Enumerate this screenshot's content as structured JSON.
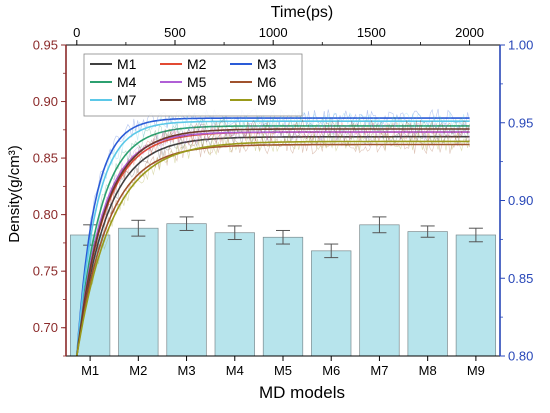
{
  "chart_data": {
    "type": "bar",
    "xlabel": "MD models",
    "ylabel_left": "Density(g/cm³)",
    "xlabel_top": "Time(ps)",
    "categories": [
      "M1",
      "M2",
      "M3",
      "M4",
      "M5",
      "M6",
      "M7",
      "M8",
      "M9"
    ],
    "bars": {
      "name": "Density",
      "values": [
        0.782,
        0.788,
        0.792,
        0.784,
        0.78,
        0.768,
        0.791,
        0.785,
        0.782
      ],
      "errors": [
        0.009,
        0.007,
        0.006,
        0.006,
        0.006,
        0.006,
        0.007,
        0.005,
        0.006
      ],
      "color": "#b7e4ec"
    },
    "left_axis": {
      "min": 0.675,
      "max": 0.95,
      "ticks": [
        0.7,
        0.75,
        0.8,
        0.85,
        0.9,
        0.95
      ],
      "tick_labels": [
        "0.70",
        "0.75",
        "0.80",
        "0.85",
        "0.90",
        "0.95"
      ],
      "color": "#8b2a2a"
    },
    "right_axis": {
      "min": 0.8,
      "max": 1.0,
      "ticks": [
        0.8,
        0.85,
        0.9,
        0.95,
        1.0
      ],
      "tick_labels": [
        "0.80",
        "0.85",
        "0.90",
        "0.95",
        "1.00"
      ],
      "color": "#2847b8"
    },
    "top_axis": {
      "min": -55,
      "max": 2155,
      "ticks": [
        0,
        500,
        1000,
        1500,
        2000
      ],
      "tick_labels": [
        "0",
        "500",
        "1000",
        "1500",
        "2000"
      ]
    },
    "lines": {
      "axis": "right",
      "time_start": 0,
      "time_end": 2000,
      "series": [
        {
          "name": "M1",
          "color": "#404040",
          "start": 0.8,
          "plateau": 0.941,
          "tau": 150
        },
        {
          "name": "M2",
          "color": "#e24a33",
          "start": 0.8,
          "plateau": 0.944,
          "tau": 140
        },
        {
          "name": "M3",
          "color": "#2a5bd7",
          "start": 0.8,
          "plateau": 0.953,
          "tau": 90
        },
        {
          "name": "M4",
          "color": "#2ca070",
          "start": 0.8,
          "plateau": 0.948,
          "tau": 120
        },
        {
          "name": "M5",
          "color": "#b05fd6",
          "start": 0.8,
          "plateau": 0.944,
          "tau": 130
        },
        {
          "name": "M6",
          "color": "#a0522d",
          "start": 0.8,
          "plateau": 0.936,
          "tau": 160
        },
        {
          "name": "M7",
          "color": "#5bc8e8",
          "start": 0.8,
          "plateau": 0.951,
          "tau": 100
        },
        {
          "name": "M8",
          "color": "#6b3a2a",
          "start": 0.8,
          "plateau": 0.946,
          "tau": 140
        },
        {
          "name": "M9",
          "color": "#9a9a1a",
          "start": 0.8,
          "plateau": 0.938,
          "tau": 180
        }
      ]
    },
    "legend": {
      "placement": "top-left",
      "columns": 3,
      "entries": [
        "M1",
        "M2",
        "M3",
        "M4",
        "M5",
        "M6",
        "M7",
        "M8",
        "M9"
      ]
    },
    "grid": false
  }
}
